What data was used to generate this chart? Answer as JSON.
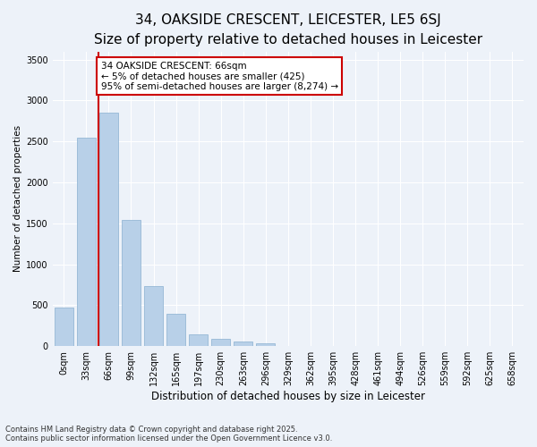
{
  "title1": "34, OAKSIDE CRESCENT, LEICESTER, LE5 6SJ",
  "title2": "Size of property relative to detached houses in Leicester",
  "xlabel": "Distribution of detached houses by size in Leicester",
  "ylabel": "Number of detached properties",
  "categories": [
    "0sqm",
    "33sqm",
    "66sqm",
    "99sqm",
    "132sqm",
    "165sqm",
    "197sqm",
    "230sqm",
    "263sqm",
    "296sqm",
    "329sqm",
    "362sqm",
    "395sqm",
    "428sqm",
    "461sqm",
    "494sqm",
    "526sqm",
    "559sqm",
    "592sqm",
    "625sqm",
    "658sqm"
  ],
  "values": [
    470,
    2550,
    2850,
    1540,
    730,
    390,
    145,
    90,
    55,
    40,
    5,
    2,
    1,
    1,
    0,
    0,
    0,
    0,
    0,
    0,
    0
  ],
  "bar_color": "#b8d0e8",
  "bar_edge_color": "#8ab0d0",
  "vline_x": 1.55,
  "vline_color": "#cc0000",
  "annotation_text": "34 OAKSIDE CRESCENT: 66sqm\n← 5% of detached houses are smaller (425)\n95% of semi-detached houses are larger (8,274) →",
  "annotation_box_color": "#ffffff",
  "annotation_box_edge": "#cc0000",
  "ylim": [
    0,
    3600
  ],
  "yticks": [
    0,
    500,
    1000,
    1500,
    2000,
    2500,
    3000,
    3500
  ],
  "footer1": "Contains HM Land Registry data © Crown copyright and database right 2025.",
  "footer2": "Contains public sector information licensed under the Open Government Licence v3.0.",
  "bg_color": "#edf2f9",
  "plot_bg_color": "#edf2f9",
  "title1_fontsize": 11,
  "title2_fontsize": 9.5,
  "annotation_fontsize": 7.5,
  "ylabel_fontsize": 7.5,
  "xlabel_fontsize": 8.5,
  "tick_fontsize": 7,
  "footer_fontsize": 6
}
